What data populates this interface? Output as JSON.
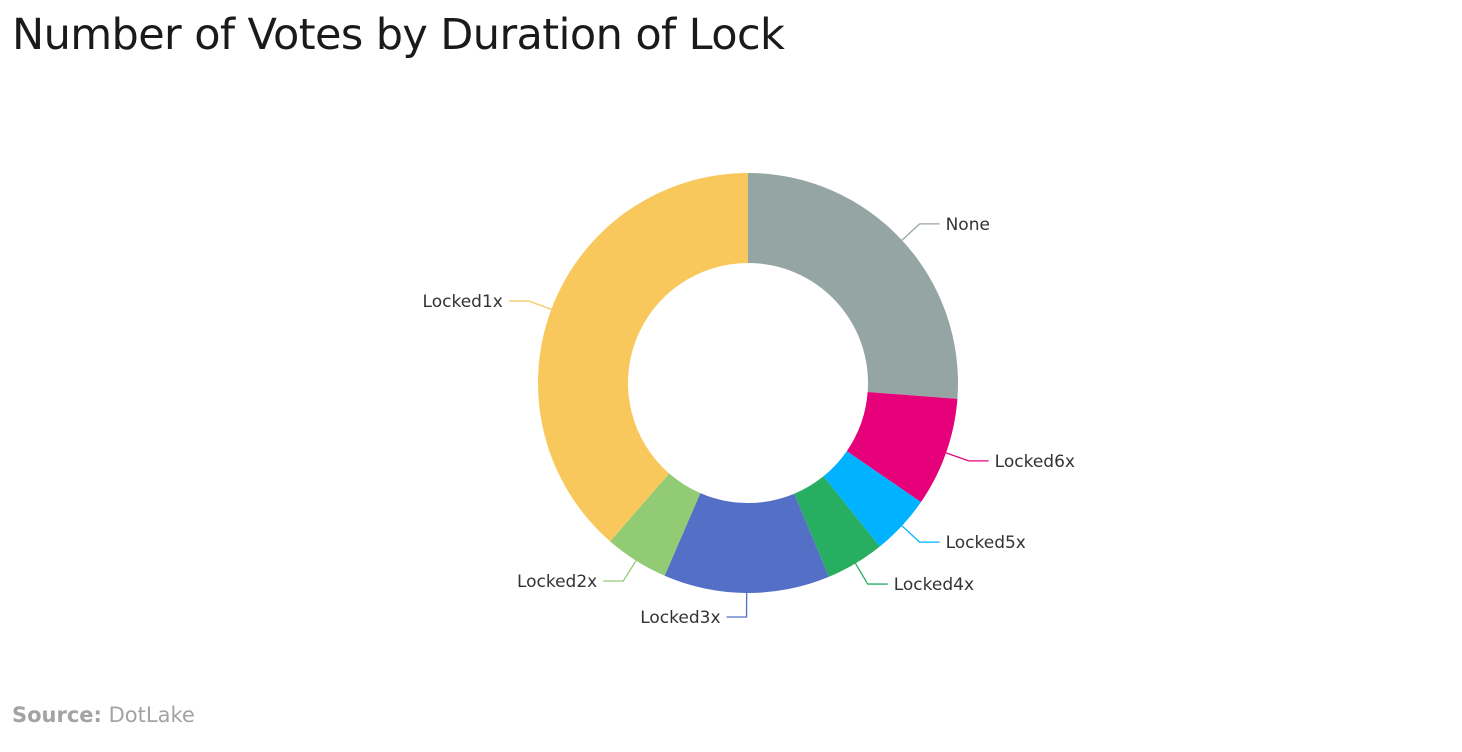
{
  "page": {
    "title": "Number of Votes by Duration of Lock",
    "source_label": "Source:",
    "source_value": "DotLake"
  },
  "chart_data": {
    "type": "pie",
    "title": "Number of Votes by Duration of Lock",
    "donut": true,
    "start_angle_deg": 0,
    "direction": "clockwise",
    "categories": [
      "None",
      "Locked6x",
      "Locked5x",
      "Locked4x",
      "Locked3x",
      "Locked2x",
      "Locked1x"
    ],
    "values": [
      26.2,
      8.4,
      4.6,
      4.5,
      12.8,
      4.9,
      38.6
    ],
    "unit": "percent of votes (estimated)",
    "colors": [
      "#95a5a4",
      "#e6007a",
      "#00b2ff",
      "#27ae60",
      "#5470c6",
      "#91cc75",
      "#f8c85c"
    ],
    "legend": "none"
  }
}
